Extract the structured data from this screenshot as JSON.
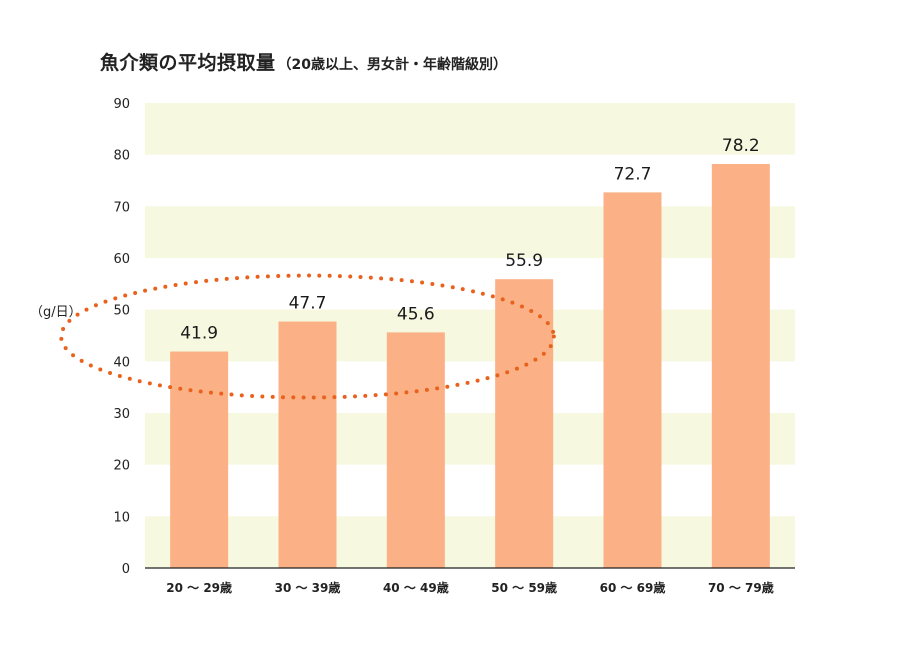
{
  "chart_data": {
    "type": "bar",
    "title": "魚介類の平均摂取量",
    "subtitle": "（20歳以上、男女計・年齢階級別）",
    "ylabel": "（g/日）",
    "xlabel": "",
    "ylim": [
      0,
      90
    ],
    "yticks": [
      0,
      10,
      20,
      30,
      40,
      50,
      60,
      70,
      80,
      90
    ],
    "categories": [
      "20 ～ 29歳",
      "30 ～ 39歳",
      "40 ～ 49歳",
      "50 ～ 59歳",
      "60 ～ 69歳",
      "70 ～ 79歳"
    ],
    "values": [
      41.9,
      47.7,
      45.6,
      55.9,
      72.7,
      78.2
    ],
    "value_labels": [
      "41.9",
      "47.7",
      "45.6",
      "55.9",
      "72.7",
      "78.2"
    ],
    "highlight": {
      "categories": [
        "20 ～ 29歳",
        "30 ～ 39歳",
        "40 ～ 49歳"
      ],
      "style": "dotted-ellipse"
    },
    "grid": "alternating-bands",
    "colors": {
      "bar": "#fbb185",
      "band": "#f6f8e0",
      "highlight": "#e8621e",
      "axis": "#222222"
    }
  }
}
